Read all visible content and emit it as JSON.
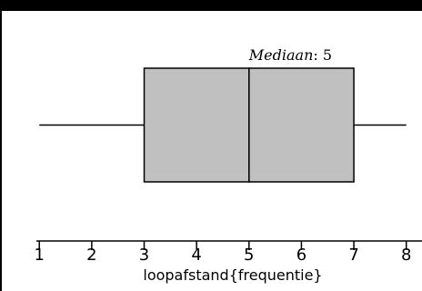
{
  "chart_data": {
    "type": "boxplot",
    "xlabel": "loopafstand{frequentie}",
    "xlim": [
      0.25,
      8.3
    ],
    "ticks": [
      1,
      2,
      3,
      4,
      5,
      6,
      7,
      8
    ],
    "tick_labels": [
      "1",
      "2",
      "3",
      "4",
      "5",
      "6",
      "7",
      "8"
    ],
    "summary": {
      "min": 1,
      "q1": 3,
      "median": 5,
      "q3": 7,
      "max": 8
    },
    "annotation": {
      "label": "Mediaan",
      "separator": ": ",
      "value": "5"
    },
    "colors": {
      "box_fill": "#c0c0c0",
      "stroke": "#000000",
      "frame": "#000000"
    }
  }
}
